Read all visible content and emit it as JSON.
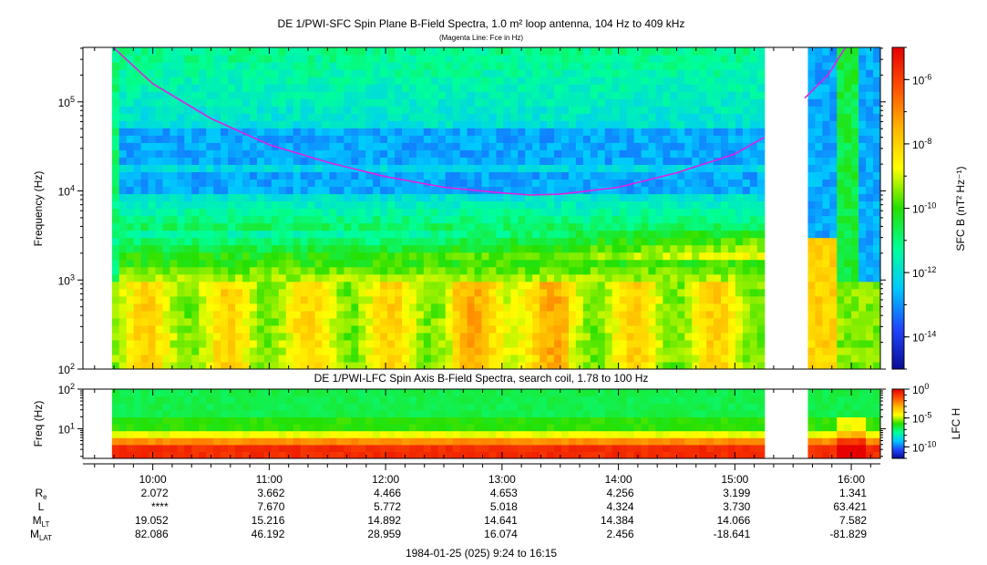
{
  "chart_data": [
    {
      "type": "heatmap",
      "title": "DE 1/PWI-SFC  Spin Plane B-Field Spectra, 1.0 m² loop antenna, 104 Hz to 409 kHz",
      "subtitle": "(Magenta Line: Fce in Hz)",
      "ylabel": "Frequency (Hz)",
      "yscale": "log",
      "ylim": [
        100,
        409000
      ],
      "y_ticks": [
        {
          "value": 100,
          "base": "10",
          "exp": "2"
        },
        {
          "value": 1000,
          "base": "10",
          "exp": "3"
        },
        {
          "value": 10000,
          "base": "10",
          "exp": "4"
        },
        {
          "value": 100000,
          "base": "10",
          "exp": "5"
        }
      ],
      "colorbar": {
        "label": "SFC B (nT² Hz⁻¹)",
        "scale": "log",
        "range_exp": [
          -15,
          -5
        ],
        "colors": [
          "#0a0a96",
          "#1e46ff",
          "#00c8ff",
          "#00ff9a",
          "#26e000",
          "#ffff00",
          "#ffb400",
          "#ff5000",
          "#e60000"
        ],
        "ticks": [
          {
            "exp": -14,
            "base": "10",
            "sup": "-14"
          },
          {
            "exp": -12,
            "base": "10",
            "sup": "-12"
          },
          {
            "exp": -10,
            "base": "10",
            "sup": "-10"
          },
          {
            "exp": -8,
            "base": "10",
            "sup": "-8"
          },
          {
            "exp": -6,
            "base": "10",
            "sup": "-6"
          }
        ]
      },
      "fce_line": {
        "name": "Fce",
        "color": "#e020e0",
        "points": [
          [
            9.66,
            409000
          ],
          [
            10.0,
            160000
          ],
          [
            10.5,
            65000
          ],
          [
            11.0,
            33000
          ],
          [
            11.5,
            21000
          ],
          [
            12.0,
            14500
          ],
          [
            12.5,
            11000
          ],
          [
            13.0,
            9500
          ],
          [
            13.25,
            9000
          ],
          [
            13.5,
            9200
          ],
          [
            14.0,
            11000
          ],
          [
            14.5,
            16000
          ],
          [
            15.0,
            26000
          ],
          [
            15.25,
            40000
          ]
        ],
        "points_right": [
          [
            15.6,
            110000
          ],
          [
            15.8,
            200000
          ],
          [
            15.95,
            409000
          ]
        ]
      }
    },
    {
      "type": "heatmap",
      "title": "DE 1/PWI-LFC  Spin Axis B-Field Spectra, search coil, 1.78 to 100 Hz",
      "ylabel": "Freq (Hz)",
      "yscale": "log",
      "ylim": [
        1.78,
        100
      ],
      "y_ticks": [
        {
          "value": 10,
          "base": "10",
          "exp": "1"
        },
        {
          "value": 100,
          "base": "10",
          "exp": "2"
        }
      ],
      "colorbar": {
        "label": "LFC H",
        "scale": "log",
        "range_exp": [
          -12,
          0
        ],
        "colors": [
          "#0a0a96",
          "#1e46ff",
          "#00c8ff",
          "#00ff9a",
          "#26e000",
          "#ffff00",
          "#ffb400",
          "#ff5000",
          "#e60000"
        ],
        "ticks": [
          {
            "exp": -10,
            "base": "10",
            "sup": "-10"
          },
          {
            "exp": -5,
            "base": "10",
            "sup": "-5"
          },
          {
            "exp": 0,
            "base": "10",
            "sup": "0"
          }
        ]
      }
    }
  ],
  "time_axis": {
    "range_hours": [
      9.4,
      16.25
    ],
    "data_gaps": [
      [
        9.4,
        9.62
      ],
      [
        15.27,
        15.6
      ]
    ],
    "sfc_band_gap_hz": [
      900,
      1050
    ],
    "labels": [
      {
        "hour": 10,
        "label": "10:00"
      },
      {
        "hour": 11,
        "label": "11:00"
      },
      {
        "hour": 12,
        "label": "12:00"
      },
      {
        "hour": 13,
        "label": "13:00"
      },
      {
        "hour": 14,
        "label": "14:00"
      },
      {
        "hour": 15,
        "label": "15:00"
      },
      {
        "hour": 16,
        "label": "16:00"
      }
    ]
  },
  "ephemeris": {
    "rows": [
      {
        "label": "R",
        "sub": "e",
        "values": [
          "2.072",
          "3.662",
          "4.466",
          "4.653",
          "4.256",
          "3.199",
          "1.341"
        ]
      },
      {
        "label": "L",
        "sub": "",
        "values": [
          "****",
          "7.670",
          "5.772",
          "5.018",
          "4.324",
          "3.730",
          "63.421"
        ]
      },
      {
        "label": "M",
        "sub": "LT",
        "values": [
          "19.052",
          "15.216",
          "14.892",
          "14.641",
          "14.384",
          "14.066",
          "7.582"
        ]
      },
      {
        "label": "M",
        "sub": "LAT",
        "values": [
          "82.086",
          "46.192",
          "28.959",
          "16.074",
          "2.456",
          "-18.641",
          "-81.829"
        ]
      }
    ]
  },
  "footer": "1984-01-25 (025) 9:24 to 16:15"
}
